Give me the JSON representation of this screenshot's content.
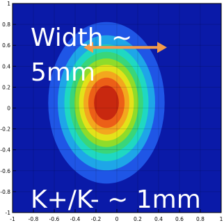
{
  "chart_data": {
    "type": "heatmap",
    "title": "",
    "xlabel": "",
    "ylabel": "",
    "xlim": [
      -1,
      1
    ],
    "ylim": [
      -1,
      1
    ],
    "x_ticks": [
      "-1",
      "-0.8",
      "-0.6",
      "-0.4",
      "-0.2",
      "0",
      "0.2",
      "0.4",
      "0.6",
      "0.8",
      "1"
    ],
    "y_ticks": [
      "1",
      "0.8",
      "0.6",
      "0.4",
      "0.2",
      "0",
      "-0.2",
      "-0.4",
      "-0.6",
      "-0.8",
      "-1"
    ],
    "grid": true,
    "distribution": {
      "center": [
        -0.1,
        0.05
      ],
      "sigma_x": 0.26,
      "sigma_y": 0.36
    },
    "colormap": [
      "#0a1aa8",
      "#1f56e6",
      "#1ea6e8",
      "#1fd8c2",
      "#39d67a",
      "#8fdc2a",
      "#e3e21a",
      "#f3a71e",
      "#ec5f17",
      "#c8280f"
    ],
    "annotations": {
      "width_line1": "Width ~",
      "width_line2": "5mm",
      "kk": "K+/K- ~ 1mm"
    },
    "arrow": {
      "x_from": -0.32,
      "x_to": 0.48,
      "y": 0.58,
      "color": "#f39a4a"
    }
  }
}
